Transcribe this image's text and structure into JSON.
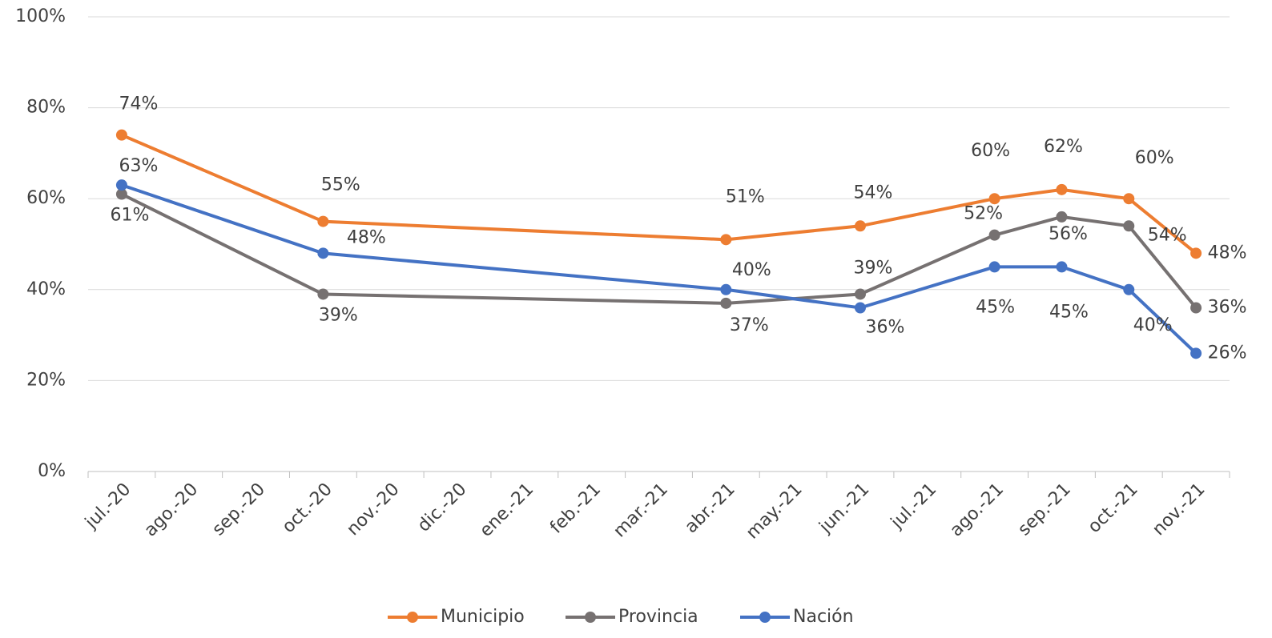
{
  "chart_data": {
    "type": "line",
    "xticks": [
      "jul.-20",
      "ago.-20",
      "sep.-20",
      "oct.-20",
      "nov.-20",
      "dic.-20",
      "ene.-21",
      "feb.-21",
      "mar.-21",
      "abr.-21",
      "may.-21",
      "jun.-21",
      "jul.-21",
      "ago.-21",
      "sep.-21",
      "oct.-21",
      "nov.-21"
    ],
    "x": [
      "jul.-20",
      "oct.-20",
      "abr.-21",
      "jun.-21",
      "ago.-21",
      "sep.-21",
      "oct.-21",
      "nov.-21"
    ],
    "series": [
      {
        "name": "Municipio",
        "color": "#ed7d31",
        "values": [
          74,
          55,
          51,
          54,
          60,
          62,
          60,
          48
        ],
        "value_labels": [
          "74%",
          "55%",
          "51%",
          "54%",
          "60%",
          "62%",
          "60%",
          "48%"
        ]
      },
      {
        "name": "Provincia",
        "color": "#767171",
        "values": [
          61,
          39,
          37,
          39,
          52,
          56,
          54,
          36
        ],
        "value_labels": [
          "61%",
          "39%",
          "37%",
          "39%",
          "52%",
          "56%",
          "54%",
          "36%"
        ]
      },
      {
        "name": "Nación",
        "color": "#4472c4",
        "values": [
          63,
          48,
          40,
          36,
          45,
          45,
          40,
          26
        ],
        "value_labels": [
          "63%",
          "48%",
          "40%",
          "36%",
          "45%",
          "45%",
          "40%",
          "26%"
        ]
      }
    ],
    "ylim": [
      0,
      100
    ],
    "yticks": [
      {
        "value": 0,
        "label": "0%"
      },
      {
        "value": 20,
        "label": "20%"
      },
      {
        "value": 40,
        "label": "40%"
      },
      {
        "value": 60,
        "label": "60%"
      },
      {
        "value": 80,
        "label": "80%"
      },
      {
        "value": 100,
        "label": "100%"
      }
    ],
    "grid": true,
    "legend": "bottom"
  }
}
